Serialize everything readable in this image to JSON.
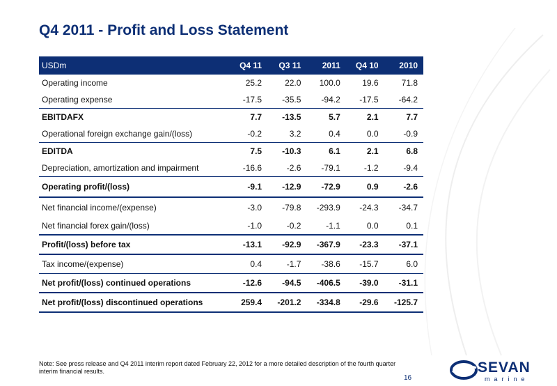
{
  "title": "Q4 2011 - Profit and Loss Statement",
  "table": {
    "headers": [
      "USDm",
      "Q4 11",
      "Q3 11",
      "2011",
      "Q4 10",
      "2010"
    ],
    "rows": [
      {
        "label": "Operating income",
        "values": [
          "25.2",
          "22.0",
          "100.0",
          "19.6",
          "71.8"
        ]
      },
      {
        "label": "Operating expense",
        "values": [
          "-17.5",
          "-35.5",
          "-94.2",
          "-17.5",
          "-64.2"
        ]
      },
      {
        "label": "EBITDAFX",
        "values": [
          "7.7",
          "-13.5",
          "5.7",
          "2.1",
          "7.7"
        ]
      },
      {
        "label": "Operational foreign exchange gain/(loss)",
        "values": [
          "-0.2",
          "3.2",
          "0.4",
          "0.0",
          "-0.9"
        ]
      },
      {
        "label": "EDITDA",
        "values": [
          "7.5",
          "-10.3",
          "6.1",
          "2.1",
          "6.8"
        ]
      },
      {
        "label": "Depreciation, amortization and impairment",
        "values": [
          "-16.6",
          "-2.6",
          "-79.1",
          "-1.2",
          "-9.4"
        ]
      },
      {
        "label": "Operating profit/(loss)",
        "values": [
          "-9.1",
          "-12.9",
          "-72.9",
          "0.9",
          "-2.6"
        ]
      },
      {
        "label": "Net financial income/(expense)",
        "values": [
          "-3.0",
          "-79.8",
          "-293.9",
          "-24.3",
          "-34.7"
        ]
      },
      {
        "label": "Net financial forex gain/(loss)",
        "values": [
          "-1.0",
          "-0.2",
          "-1.1",
          "0.0",
          "0.1"
        ]
      },
      {
        "label": "Profit/(loss) before tax",
        "values": [
          "-13.1",
          "-92.9",
          "-367.9",
          "-23.3",
          "-37.1"
        ]
      },
      {
        "label": "Tax income/(expense)",
        "values": [
          "0.4",
          "-1.7",
          "-38.6",
          "-15.7",
          "6.0"
        ]
      },
      {
        "label": "Net profit/(loss) continued operations",
        "values": [
          "-12.6",
          "-94.5",
          "-406.5",
          "-39.0",
          "-31.1"
        ]
      },
      {
        "label": "Net profit/(loss) discontinued operations",
        "values": [
          "259.4",
          "-201.2",
          "-334.8",
          "-29.6",
          "-125.7"
        ]
      }
    ]
  },
  "note": "Note: See press release and Q4 2011 interim report dated February 22, 2012 for a more detailed description of the fourth quarter interim financial results.",
  "page_number": "16",
  "logo": {
    "name": "SEVAN",
    "sub": "marine"
  },
  "colors": {
    "brand_navy": "#0d2f75"
  }
}
